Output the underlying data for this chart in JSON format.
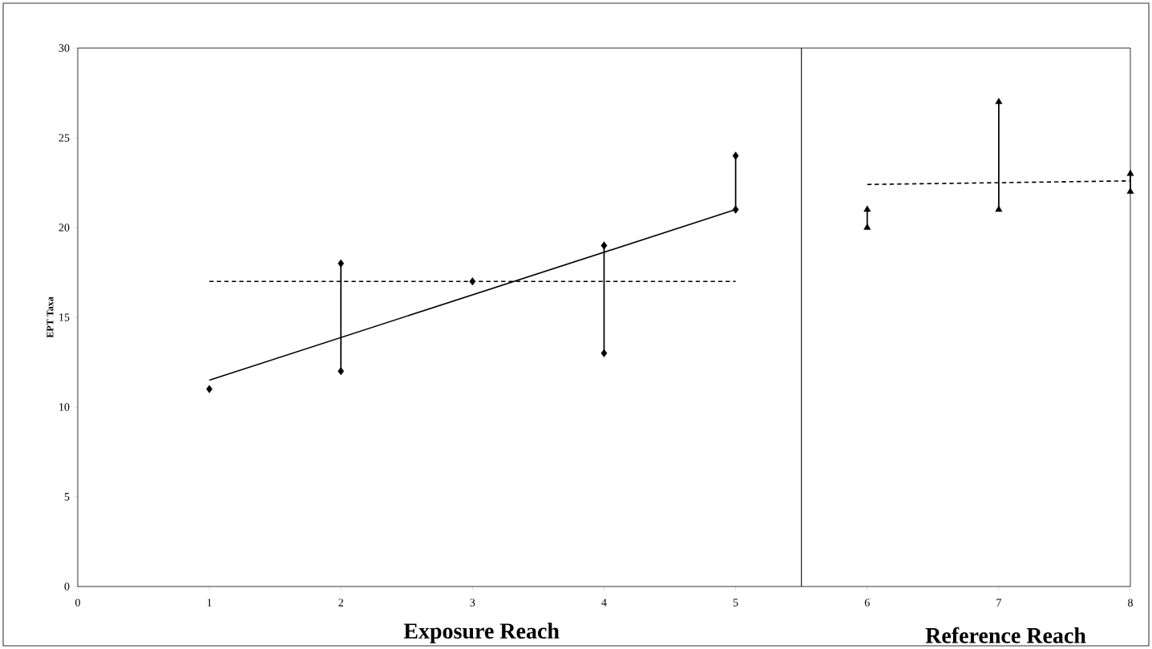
{
  "chart_data": {
    "type": "scatter",
    "ylabel": "EPT Taxa",
    "xlim": [
      0,
      8
    ],
    "xticks": [
      0,
      1,
      2,
      3,
      4,
      5,
      6,
      7,
      8
    ],
    "ylim": [
      0,
      30
    ],
    "yticks": [
      0,
      5,
      10,
      15,
      20,
      25,
      30
    ],
    "grid": false,
    "series": [
      {
        "color": "#000000",
        "marker": "diamond",
        "x": [
          1,
          2,
          3,
          4,
          5
        ],
        "values": [
          11,
          18,
          17,
          19,
          24
        ]
      },
      {
        "color": "#000000",
        "marker": "diamond",
        "x": [
          2,
          4,
          5
        ],
        "values": [
          12,
          13,
          21
        ],
        "errors": [
          [
            12,
            18
          ],
          [
            13,
            19
          ],
          [
            21,
            24
          ]
        ]
      },
      {
        "color": "#000000",
        "marker": "triangle",
        "x": [
          6,
          7,
          8
        ],
        "values": [
          21,
          27,
          23
        ]
      },
      {
        "color": "#000000",
        "marker": "triangle",
        "x": [
          6,
          7,
          8
        ],
        "values": [
          20,
          21,
          22
        ],
        "errors": [
          [
            20,
            21
          ],
          [
            21,
            27
          ],
          [
            22,
            23
          ]
        ]
      },
      {
        "type": "line",
        "color": "#000000",
        "marker": "none",
        "line_style": "solid",
        "x": [
          1,
          5
        ],
        "values": [
          11.5,
          21
        ]
      },
      {
        "type": "line",
        "color": "#000000",
        "marker": "none",
        "line_style": "dashed",
        "x": [
          1,
          5
        ],
        "values": [
          17,
          17
        ]
      },
      {
        "type": "line",
        "color": "#000000",
        "marker": "none",
        "line_style": "dashed",
        "x": [
          6,
          8
        ],
        "values": [
          22.4,
          22.6
        ]
      }
    ],
    "ref_lines": [
      {
        "axis": "x",
        "value": 5.5,
        "color": "#000000",
        "line_style": "solid"
      }
    ],
    "annotations": [
      "Exposure Reach",
      "Reference Reach"
    ]
  }
}
